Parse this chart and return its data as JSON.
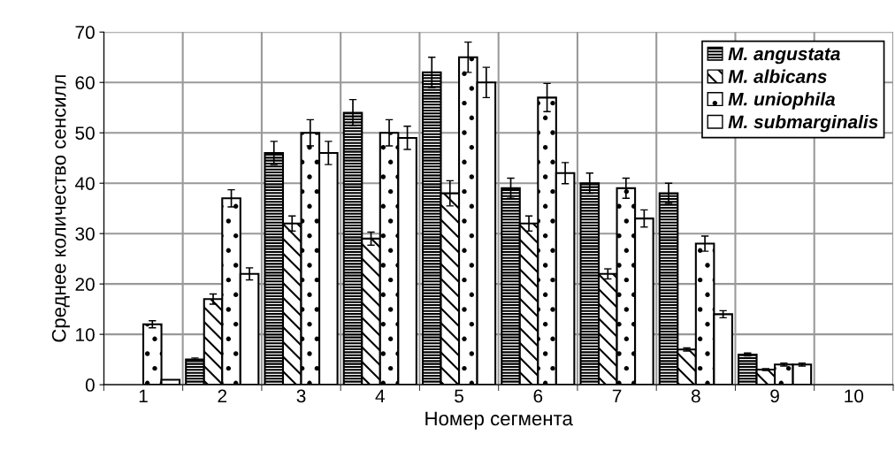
{
  "chart_data": {
    "type": "bar",
    "xlabel": "Номер сегмента",
    "ylabel": "Среднее количество сенсилл",
    "categories": [
      "1",
      "2",
      "3",
      "4",
      "5",
      "6",
      "7",
      "8",
      "9",
      "10"
    ],
    "series": [
      {
        "name": "M. angustata",
        "color": "#000000",
        "values": [
          null,
          5,
          46,
          54,
          62,
          39,
          40,
          38,
          6,
          null
        ],
        "errors": [
          null,
          0.3,
          2.3,
          2.6,
          3,
          2,
          2,
          2,
          0.3,
          null
        ]
      },
      {
        "name": "M. albicans",
        "color": "#000000",
        "values": [
          null,
          17,
          32,
          29,
          38,
          32,
          22,
          7,
          3,
          null
        ],
        "errors": [
          null,
          1,
          1.5,
          1.3,
          2.5,
          1.5,
          1,
          0.3,
          0.2,
          null
        ]
      },
      {
        "name": "M. uniophila",
        "color": "#000000",
        "values": [
          12,
          37,
          50,
          50,
          65,
          57,
          39,
          28,
          4,
          null
        ],
        "errors": [
          0.7,
          1.7,
          2.6,
          2.6,
          3,
          2.8,
          2,
          1.5,
          0.3,
          null
        ]
      },
      {
        "name": "M. submarginalis",
        "color": "#000000",
        "values": [
          1,
          22,
          46,
          49,
          60,
          42,
          33,
          14,
          4,
          null
        ],
        "errors": [
          null,
          1.2,
          2.3,
          2.3,
          3,
          2.1,
          1.7,
          0.7,
          0.3,
          null
        ]
      }
    ],
    "ylim": [
      0,
      70
    ],
    "yticks": [
      0,
      10,
      20,
      30,
      40,
      50,
      60,
      70
    ],
    "grid": true,
    "legend": "top right"
  }
}
